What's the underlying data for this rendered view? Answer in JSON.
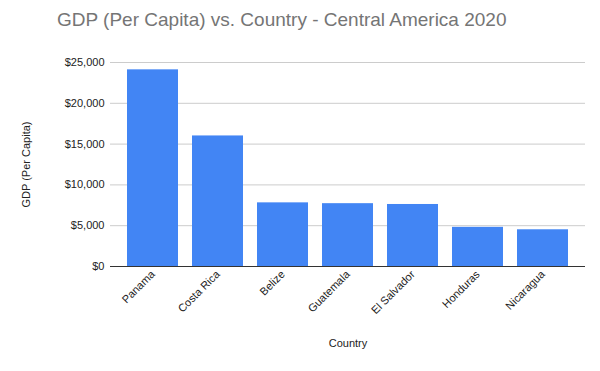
{
  "chart_data": {
    "type": "bar",
    "title": "GDP (Per Capita) vs. Country - Central America 2020",
    "x_label": "Country",
    "y_label": "GDP (Per Capita)",
    "categories": [
      "Panama",
      "Costa Rica",
      "Belize",
      "Guatemala",
      "El Salvador",
      "Honduras",
      "Nicaragua"
    ],
    "values": [
      24100,
      16000,
      7800,
      7700,
      7600,
      4800,
      4500
    ],
    "color": "#4285f4",
    "ylim": [
      0,
      25000
    ],
    "yticks": [
      {
        "value": 0,
        "label": "$0"
      },
      {
        "value": 5000,
        "label": "$5,000"
      },
      {
        "value": 10000,
        "label": "$10,000"
      },
      {
        "value": 15000,
        "label": "$15,000"
      },
      {
        "value": 20000,
        "label": "$20,000"
      },
      {
        "value": 25000,
        "label": "$25,000"
      }
    ],
    "grid": true
  }
}
